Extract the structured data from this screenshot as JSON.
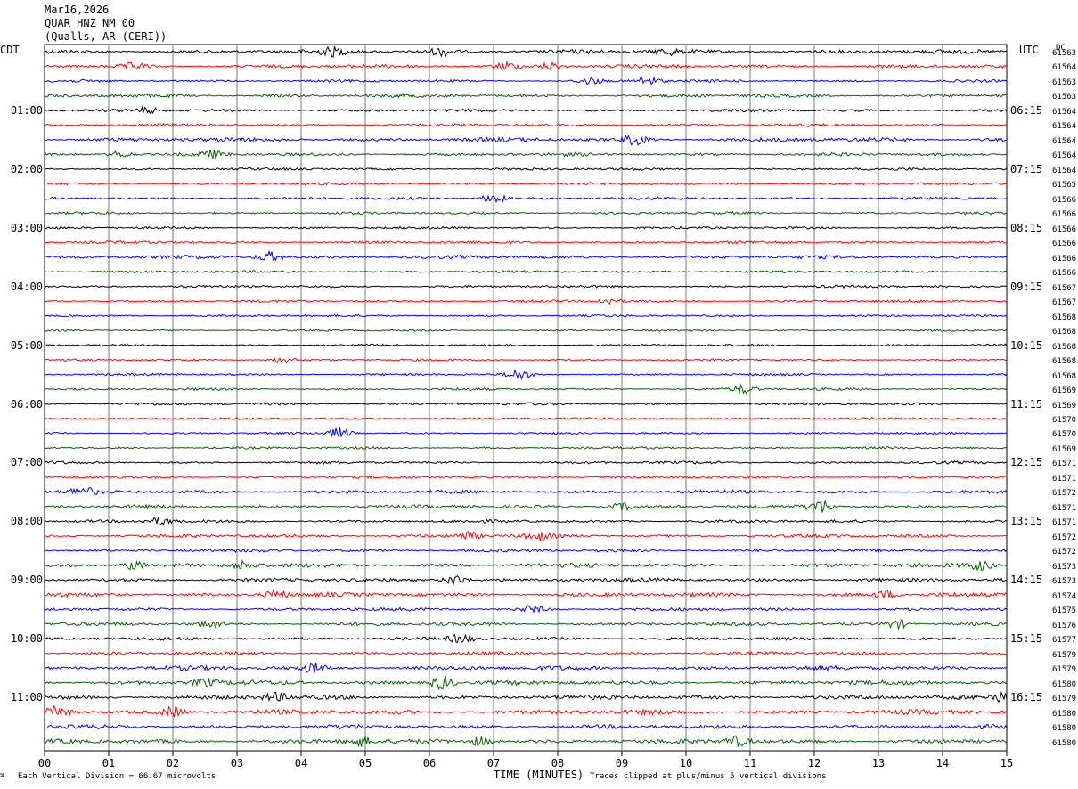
{
  "header": {
    "date": "Mar16,2026",
    "station": "QUAR HNZ NM 00",
    "location": "(Qualls, AR (CERI))"
  },
  "left_tz": "CDT",
  "right_tz": "UTC",
  "dc_header": "DC",
  "footer": {
    "scale": "Each Vertical Division =   66.67 microvolts",
    "clip": "Traces clipped at plus/minus 5 vertical divisions",
    "corner": "⌘"
  },
  "chart_data": {
    "type": "line",
    "title": "QUAR HNZ NM 00",
    "xlabel": "TIME (MINUTES)",
    "xlim": [
      0,
      15
    ],
    "x_ticks": [
      "00",
      "01",
      "02",
      "03",
      "04",
      "05",
      "06",
      "07",
      "08",
      "09",
      "10",
      "11",
      "12",
      "13",
      "14",
      "15"
    ],
    "trace_colors": [
      "#000000",
      "#ff0000",
      "#0000ff",
      "#006400"
    ],
    "left_hour_labels": [
      "01:00",
      "02:00",
      "03:00",
      "04:00",
      "05:00",
      "06:00",
      "07:00",
      "08:00",
      "09:00",
      "10:00",
      "11:00"
    ],
    "right_hour_labels": [
      "06:15",
      "07:15",
      "08:15",
      "09:15",
      "10:15",
      "11:15",
      "12:15",
      "13:15",
      "14:15",
      "15:15",
      "16:15"
    ],
    "dc_offsets": [
      "61563",
      "61564",
      "61563",
      "61563",
      "61564",
      "61564",
      "61564",
      "61564",
      "61564",
      "61565",
      "61566",
      "61566",
      "61566",
      "61566",
      "61566",
      "61566",
      "61567",
      "61567",
      "61568",
      "61568",
      "61568",
      "61568",
      "61568",
      "61569",
      "61569",
      "61570",
      "61570",
      "61569",
      "61571",
      "61571",
      "61572",
      "61571",
      "61571",
      "61572",
      "61572",
      "61573",
      "61573",
      "61574",
      "61575",
      "61576",
      "61577",
      "61579",
      "61579",
      "61580",
      "61579",
      "61580",
      "61580",
      "61580"
    ],
    "bursts": [
      {
        "trace": 0,
        "minute": 4.5,
        "amp": 1.8
      },
      {
        "trace": 0,
        "minute": 6.2,
        "amp": 2.0
      },
      {
        "trace": 0,
        "minute": 9.7,
        "amp": 1.6
      },
      {
        "trace": 1,
        "minute": 1.4,
        "amp": 1.6
      },
      {
        "trace": 1,
        "minute": 7.2,
        "amp": 2.0
      },
      {
        "trace": 1,
        "minute": 7.9,
        "amp": 1.8
      },
      {
        "trace": 2,
        "minute": 8.5,
        "amp": 1.6
      },
      {
        "trace": 2,
        "minute": 9.4,
        "amp": 2.2
      },
      {
        "trace": 4,
        "minute": 1.6,
        "amp": 1.4
      },
      {
        "trace": 6,
        "minute": 9.2,
        "amp": 2.2
      },
      {
        "trace": 7,
        "minute": 1.2,
        "amp": 1.8
      },
      {
        "trace": 7,
        "minute": 2.6,
        "amp": 1.8
      },
      {
        "trace": 10,
        "minute": 7.0,
        "amp": 2.5
      },
      {
        "trace": 14,
        "minute": 3.5,
        "amp": 2.5
      },
      {
        "trace": 17,
        "minute": 8.8,
        "amp": 1.4
      },
      {
        "trace": 21,
        "minute": 3.7,
        "amp": 1.6
      },
      {
        "trace": 22,
        "minute": 7.4,
        "amp": 2.4
      },
      {
        "trace": 23,
        "minute": 10.9,
        "amp": 2.0
      },
      {
        "trace": 26,
        "minute": 4.6,
        "amp": 2.6
      },
      {
        "trace": 30,
        "minute": 0.6,
        "amp": 2.0
      },
      {
        "trace": 31,
        "minute": 12.1,
        "amp": 3.2
      },
      {
        "trace": 31,
        "minute": 9.0,
        "amp": 1.8
      },
      {
        "trace": 32,
        "minute": 1.8,
        "amp": 1.8
      },
      {
        "trace": 33,
        "minute": 6.6,
        "amp": 2.0
      },
      {
        "trace": 33,
        "minute": 7.7,
        "amp": 2.0
      },
      {
        "trace": 35,
        "minute": 1.4,
        "amp": 2.2
      },
      {
        "trace": 35,
        "minute": 3.1,
        "amp": 2.0
      },
      {
        "trace": 35,
        "minute": 14.6,
        "amp": 2.2
      },
      {
        "trace": 36,
        "minute": 6.4,
        "amp": 2.6
      },
      {
        "trace": 37,
        "minute": 3.6,
        "amp": 2.2
      },
      {
        "trace": 37,
        "minute": 13.1,
        "amp": 2.0
      },
      {
        "trace": 38,
        "minute": 7.6,
        "amp": 1.8
      },
      {
        "trace": 39,
        "minute": 2.6,
        "amp": 2.0
      },
      {
        "trace": 39,
        "minute": 13.3,
        "amp": 2.2
      },
      {
        "trace": 40,
        "minute": 6.5,
        "amp": 2.0
      },
      {
        "trace": 42,
        "minute": 4.2,
        "amp": 2.0
      },
      {
        "trace": 43,
        "minute": 6.2,
        "amp": 3.5
      },
      {
        "trace": 43,
        "minute": 2.5,
        "amp": 2.0
      },
      {
        "trace": 44,
        "minute": 3.6,
        "amp": 2.0
      },
      {
        "trace": 44,
        "minute": 14.9,
        "amp": 2.2
      },
      {
        "trace": 45,
        "minute": 0.2,
        "amp": 2.4
      },
      {
        "trace": 45,
        "minute": 2.0,
        "amp": 2.4
      },
      {
        "trace": 47,
        "minute": 4.9,
        "amp": 2.4
      },
      {
        "trace": 47,
        "minute": 6.8,
        "amp": 2.2
      },
      {
        "trace": 47,
        "minute": 10.8,
        "amp": 2.4
      }
    ],
    "trace_noise": [
      2.6,
      2.2,
      1.6,
      2.2,
      1.8,
      1.7,
      2.6,
      2.0,
      1.6,
      1.6,
      1.7,
      1.6,
      1.5,
      1.8,
      2.2,
      1.6,
      1.6,
      1.5,
      1.4,
      1.2,
      1.3,
      1.3,
      1.4,
      1.5,
      1.7,
      1.3,
      1.3,
      1.5,
      1.7,
      1.6,
      2.2,
      2.2,
      1.9,
      2.0,
      1.9,
      2.6,
      2.4,
      2.5,
      2.0,
      2.2,
      2.0,
      2.0,
      2.8,
      2.8,
      2.8,
      3.0,
      2.6,
      2.8
    ]
  }
}
